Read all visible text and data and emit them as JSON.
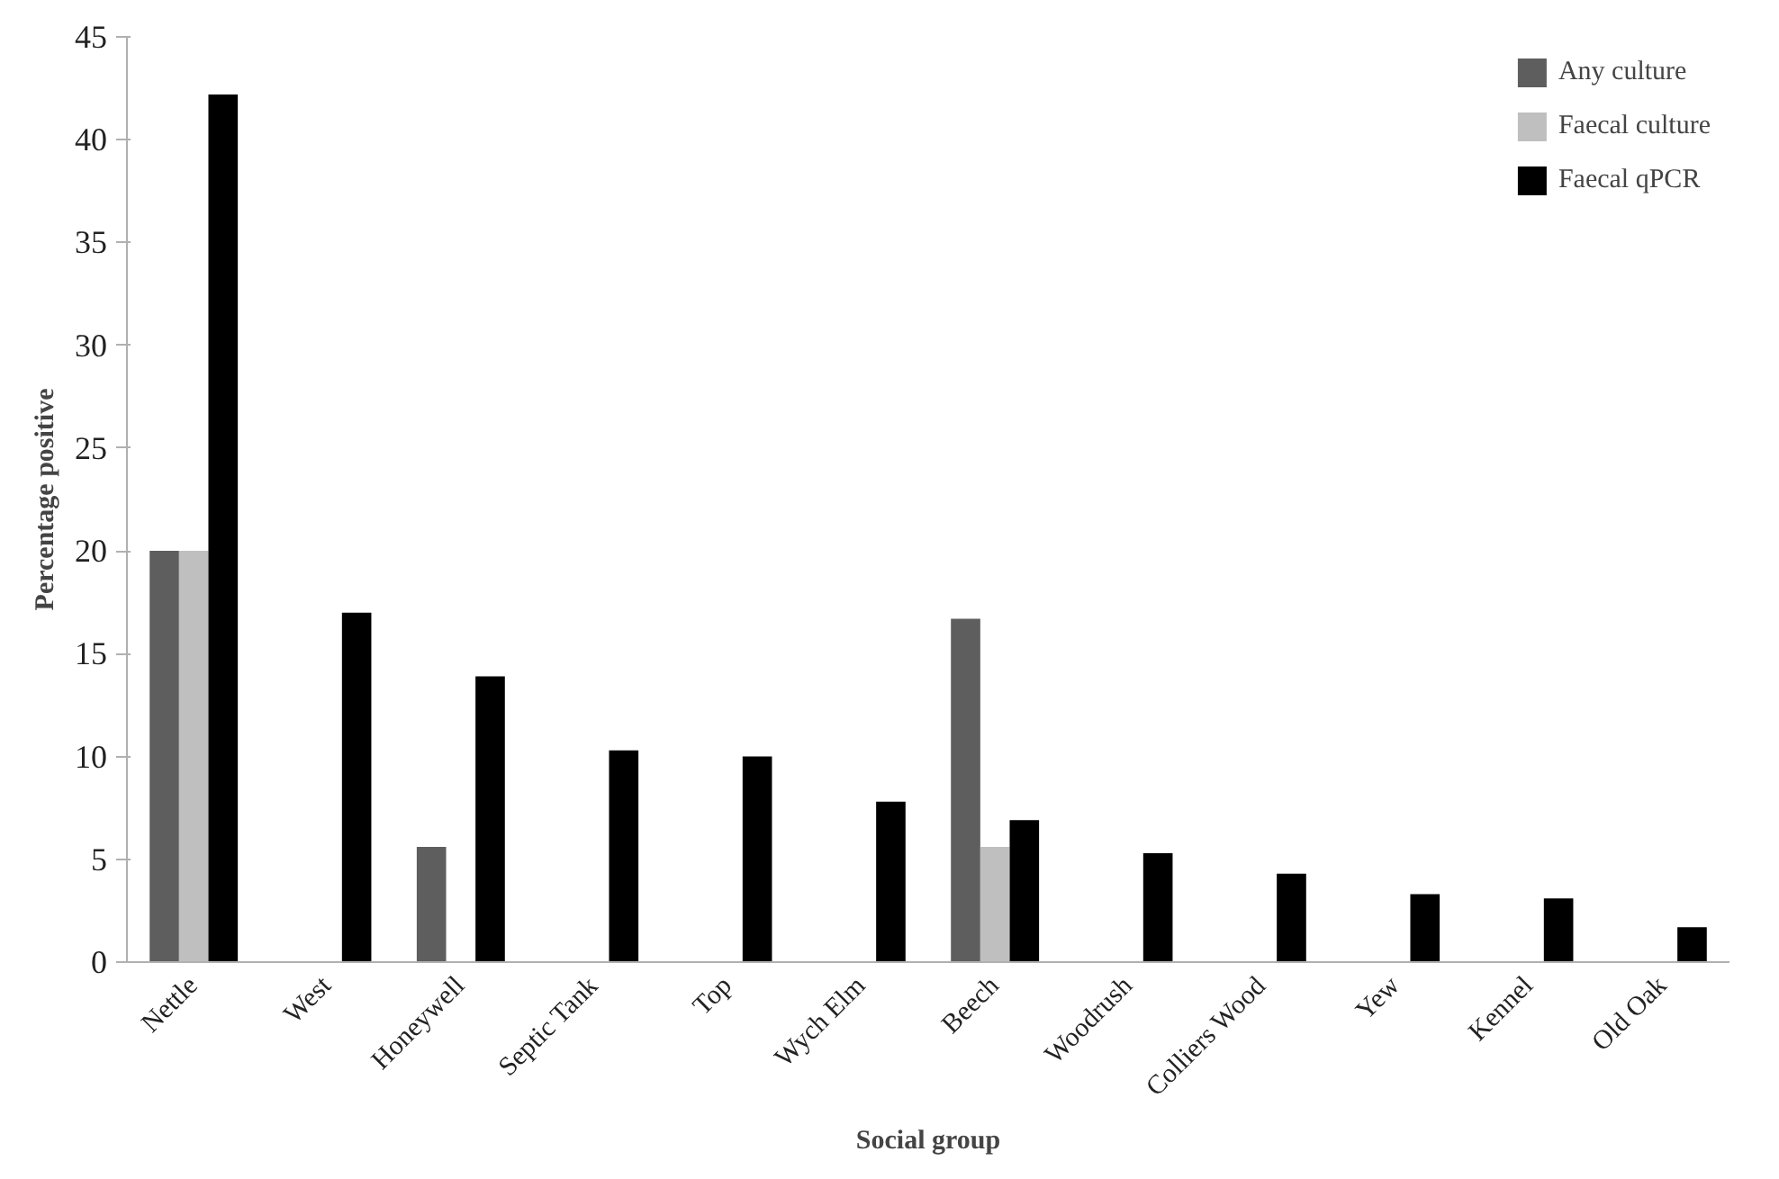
{
  "chart_data": {
    "type": "bar",
    "xlabel": "Social group",
    "ylabel": "Percentage positive",
    "categories": [
      "Nettle",
      "West",
      "Honeywell",
      "Septic Tank",
      "Top",
      "Wych Elm",
      "Beech",
      "Woodrush",
      "Colliers Wood",
      "Yew",
      "Kennel",
      "Old Oak"
    ],
    "series": [
      {
        "name": "Any culture",
        "color": "#5e5e5e",
        "values": [
          20,
          0,
          5.6,
          0,
          0,
          0,
          16.7,
          0,
          0,
          0,
          0,
          0
        ]
      },
      {
        "name": "Faecal culture",
        "color": "#bfbfbf",
        "values": [
          20,
          0,
          0,
          0,
          0,
          0,
          5.6,
          0,
          0,
          0,
          0,
          0
        ]
      },
      {
        "name": "Faecal qPCR",
        "color": "#000000",
        "values": [
          42.2,
          17,
          13.9,
          10.3,
          10,
          7.8,
          6.9,
          5.3,
          4.3,
          3.3,
          3.1,
          1.7
        ]
      }
    ],
    "ylim": [
      0,
      45
    ],
    "yticks": [
      0,
      5,
      10,
      15,
      20,
      25,
      30,
      35,
      40,
      45
    ],
    "grid": false,
    "legend": "top right"
  }
}
